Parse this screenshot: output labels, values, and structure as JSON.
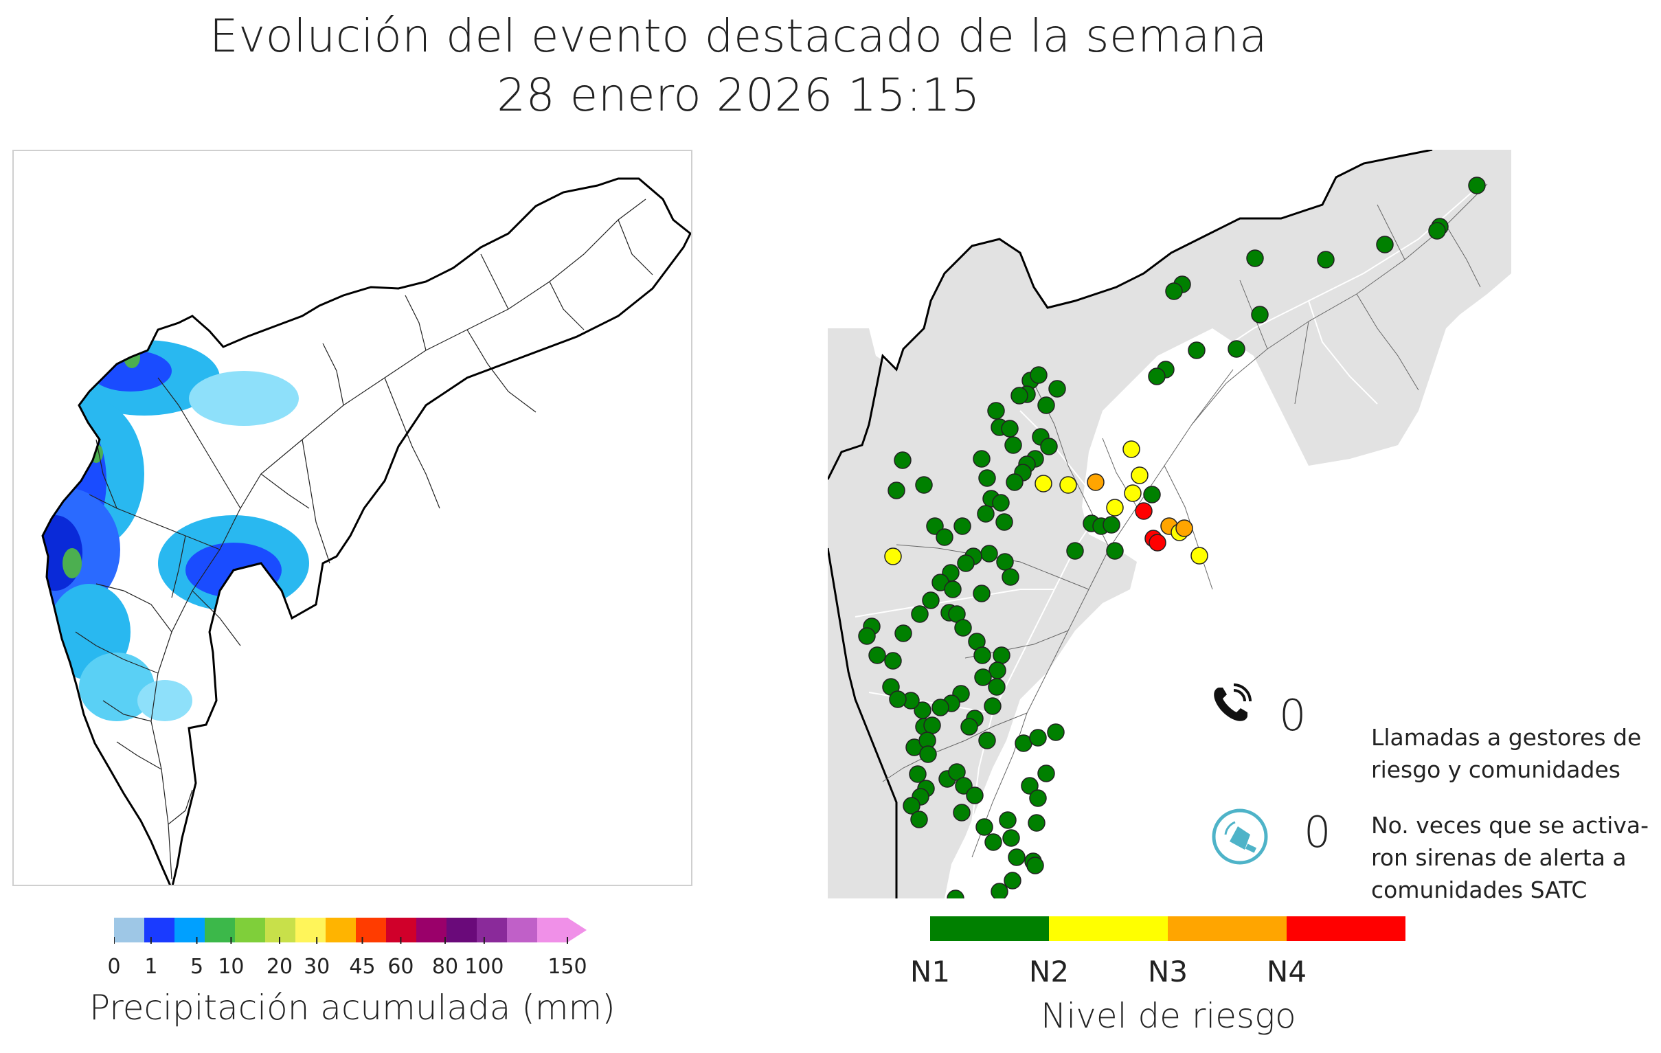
{
  "title": {
    "line1": "Evolución del evento destacado de la semana",
    "line2": "28 enero 2026 15:15"
  },
  "precipitation_colorbar": {
    "title": "Precipitación acumulada (mm)",
    "ticks": [
      "0",
      "1",
      "5",
      "10",
      "20",
      "30",
      "45",
      "60",
      "80",
      "100",
      "150"
    ],
    "tick_values": [
      0,
      1,
      5,
      10,
      20,
      30,
      45,
      60,
      80,
      100,
      150
    ],
    "colors": [
      "#9ec7e6",
      "#1a3bff",
      "#00a0ff",
      "#3cb84a",
      "#7fcf3a",
      "#c8e04a",
      "#fff55a",
      "#ffb400",
      "#ff3c00",
      "#d0002a",
      "#9a006a",
      "#6a0a7a",
      "#8a2a9a",
      "#c060c8",
      "#f090e8"
    ]
  },
  "risk_colorbar": {
    "title": "Nivel de riesgo",
    "levels": [
      {
        "label": "N1",
        "color": "#008000"
      },
      {
        "label": "N2",
        "color": "#ffff00"
      },
      {
        "label": "N3",
        "color": "#ffa500"
      },
      {
        "label": "N4",
        "color": "#ff0000"
      }
    ]
  },
  "stats": {
    "calls": {
      "value": "0",
      "label": "Llamadas a gestores de\nriesgo y comunidades",
      "icon": "phone-icon"
    },
    "sirens": {
      "value": "0",
      "label": "No. veces que se activa-\nron sirenas de alerta a\ncomunidades SATC",
      "icon": "siren-icon"
    }
  },
  "colors": {
    "basin_fill": "#e2e2e2",
    "river": "#555555",
    "outline": "#000000"
  }
}
